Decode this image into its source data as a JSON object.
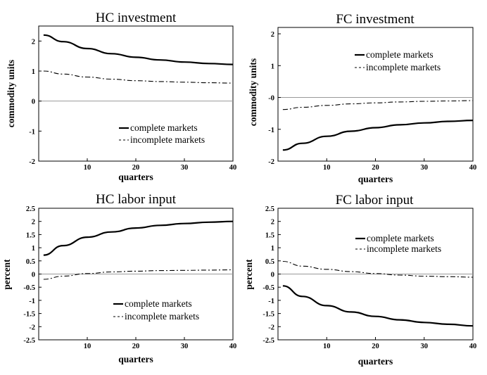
{
  "chart_data": [
    {
      "type": "line",
      "title": "HC investment",
      "xlabel": "quarters",
      "ylabel": "commodity units",
      "xlim": [
        0,
        40
      ],
      "ylim": [
        -2,
        2.5
      ],
      "xticks": [
        10,
        20,
        30,
        40
      ],
      "yticks": [
        "-2",
        "-1",
        "0",
        "1",
        "2"
      ],
      "legend": "bottom-right",
      "series": [
        {
          "name": "complete markets",
          "style": "solid",
          "x": [
            1,
            5,
            10,
            15,
            20,
            25,
            30,
            35,
            40
          ],
          "y": [
            2.2,
            1.98,
            1.75,
            1.58,
            1.46,
            1.37,
            1.3,
            1.25,
            1.22
          ]
        },
        {
          "name": "incomplete markets",
          "style": "dashdot",
          "x": [
            1,
            5,
            10,
            15,
            20,
            25,
            30,
            35,
            40
          ],
          "y": [
            1.0,
            0.9,
            0.8,
            0.73,
            0.68,
            0.65,
            0.63,
            0.61,
            0.6
          ]
        }
      ]
    },
    {
      "type": "line",
      "title": "FC investment",
      "xlabel": "quarters",
      "ylabel": "commodity units",
      "xlim": [
        0,
        40
      ],
      "ylim": [
        -2,
        2.2
      ],
      "xticks": [
        10,
        20,
        30,
        40
      ],
      "yticks": [
        "-2",
        "-1",
        "-0",
        "1",
        "2"
      ],
      "legend": "top-right",
      "series": [
        {
          "name": "complete markets",
          "style": "solid",
          "x": [
            1,
            5,
            10,
            15,
            20,
            25,
            30,
            35,
            40
          ],
          "y": [
            -1.65,
            -1.44,
            -1.22,
            -1.06,
            -0.95,
            -0.86,
            -0.8,
            -0.75,
            -0.72
          ]
        },
        {
          "name": "incomplete markets",
          "style": "dashdot",
          "x": [
            1,
            5,
            10,
            15,
            20,
            25,
            30,
            35,
            40
          ],
          "y": [
            -0.38,
            -0.31,
            -0.25,
            -0.2,
            -0.17,
            -0.14,
            -0.12,
            -0.11,
            -0.1
          ]
        }
      ]
    },
    {
      "type": "line",
      "title": "HC labor input",
      "xlabel": "quarters",
      "ylabel": "percent",
      "xlim": [
        0,
        40
      ],
      "ylim": [
        -2.5,
        2.5
      ],
      "xticks": [
        10,
        20,
        30,
        40
      ],
      "yticks": [
        "-2.5",
        "-2",
        "-1.5",
        "-1",
        "-0.5",
        "0",
        "0.5",
        "1",
        "1.5",
        "2",
        "2.5"
      ],
      "legend": "bottom-right",
      "series": [
        {
          "name": "complete markets",
          "style": "solid",
          "x": [
            1,
            5,
            10,
            15,
            20,
            25,
            30,
            35,
            40
          ],
          "y": [
            0.72,
            1.08,
            1.4,
            1.6,
            1.75,
            1.85,
            1.92,
            1.97,
            2.0
          ]
        },
        {
          "name": "incomplete markets",
          "style": "dashdot",
          "x": [
            1,
            5,
            10,
            15,
            20,
            25,
            30,
            35,
            40
          ],
          "y": [
            -0.2,
            -0.08,
            0.02,
            0.08,
            0.11,
            0.13,
            0.14,
            0.15,
            0.16
          ]
        }
      ]
    },
    {
      "type": "line",
      "title": "FC labor input",
      "xlabel": "quarters",
      "ylabel": "percent",
      "xlim": [
        0,
        40
      ],
      "ylim": [
        -2.5,
        2.5
      ],
      "xticks": [
        10,
        20,
        30,
        40
      ],
      "yticks": [
        "-2.5",
        "-2",
        "-1.5",
        "-1",
        "-0.5",
        "0",
        "0.5",
        "1",
        "1.5",
        "2",
        "2.5"
      ],
      "legend": "top-right",
      "series": [
        {
          "name": "complete markets",
          "style": "solid",
          "x": [
            1,
            5,
            10,
            15,
            20,
            25,
            30,
            35,
            40
          ],
          "y": [
            -0.45,
            -0.85,
            -1.2,
            -1.44,
            -1.61,
            -1.74,
            -1.84,
            -1.91,
            -1.97
          ]
        },
        {
          "name": "incomplete markets",
          "style": "dashdot",
          "x": [
            1,
            5,
            10,
            15,
            20,
            25,
            30,
            35,
            40
          ],
          "y": [
            0.48,
            0.3,
            0.18,
            0.09,
            0.02,
            -0.04,
            -0.08,
            -0.1,
            -0.12
          ]
        }
      ]
    }
  ]
}
